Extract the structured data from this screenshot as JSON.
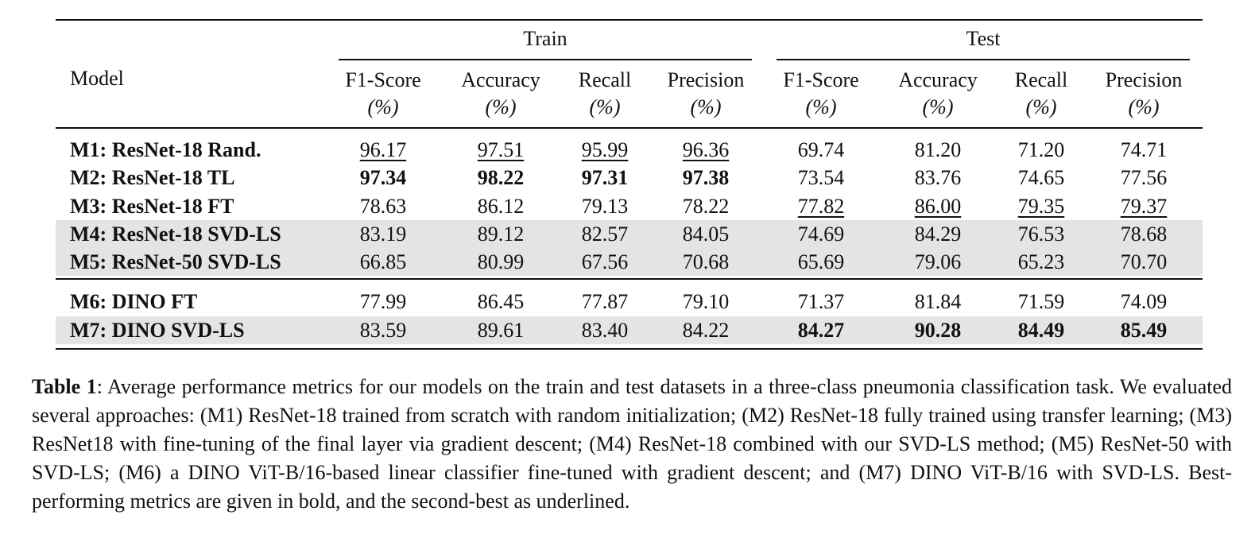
{
  "table": {
    "model_header": "Model",
    "groups": [
      "Train",
      "Test"
    ],
    "metric_headers": [
      {
        "name": "F1-Score",
        "unit": "(%)"
      },
      {
        "name": "Accuracy",
        "unit": "(%)"
      },
      {
        "name": "Recall",
        "unit": "(%)"
      },
      {
        "name": "Precision",
        "unit": "(%)"
      },
      {
        "name": "F1-Score",
        "unit": "(%)"
      },
      {
        "name": "Accuracy",
        "unit": "(%)"
      },
      {
        "name": "Recall",
        "unit": "(%)"
      },
      {
        "name": "Precision",
        "unit": "(%)"
      }
    ],
    "rows": [
      {
        "model": "M1: ResNet-18 Rand.",
        "shaded": false,
        "values": [
          "96.17",
          "97.51",
          "95.99",
          "96.36",
          "69.74",
          "81.20",
          "71.20",
          "74.71"
        ],
        "styles": [
          "u",
          "u",
          "u",
          "u",
          "",
          "",
          "",
          ""
        ]
      },
      {
        "model": "M2: ResNet-18 TL",
        "shaded": false,
        "values": [
          "97.34",
          "98.22",
          "97.31",
          "97.38",
          "73.54",
          "83.76",
          "74.65",
          "77.56"
        ],
        "styles": [
          "b",
          "b",
          "b",
          "b",
          "",
          "",
          "",
          ""
        ]
      },
      {
        "model": "M3: ResNet-18 FT",
        "shaded": false,
        "values": [
          "78.63",
          "86.12",
          "79.13",
          "78.22",
          "77.82",
          "86.00",
          "79.35",
          "79.37"
        ],
        "styles": [
          "",
          "",
          "",
          "",
          "u",
          "u",
          "u",
          "u"
        ]
      },
      {
        "model": "M4: ResNet-18 SVD-LS",
        "shaded": true,
        "values": [
          "83.19",
          "89.12",
          "82.57",
          "84.05",
          "74.69",
          "84.29",
          "76.53",
          "78.68"
        ],
        "styles": [
          "",
          "",
          "",
          "",
          "",
          "",
          "",
          ""
        ]
      },
      {
        "model": "M5: ResNet-50 SVD-LS",
        "shaded": true,
        "values": [
          "66.85",
          "80.99",
          "67.56",
          "70.68",
          "65.69",
          "79.06",
          "65.23",
          "70.70"
        ],
        "styles": [
          "",
          "",
          "",
          "",
          "",
          "",
          "",
          ""
        ]
      },
      {
        "model": "M6: DINO FT",
        "shaded": false,
        "values": [
          "77.99",
          "86.45",
          "77.87",
          "79.10",
          "71.37",
          "81.84",
          "71.59",
          "74.09"
        ],
        "styles": [
          "",
          "",
          "",
          "",
          "",
          "",
          "",
          ""
        ]
      },
      {
        "model": "M7: DINO SVD-LS",
        "shaded": true,
        "values": [
          "83.59",
          "89.61",
          "83.40",
          "84.22",
          "84.27",
          "90.28",
          "84.49",
          "85.49"
        ],
        "styles": [
          "",
          "",
          "",
          "",
          "b",
          "b",
          "b",
          "b"
        ]
      }
    ]
  },
  "caption": {
    "label": "Table 1",
    "text": ": Average performance metrics for our models on the train and test datasets in a three-class pneumonia classification task. We evaluated several approaches: (M1) ResNet-18 trained from scratch with random initialization; (M2) ResNet-18 fully trained using transfer learning; (M3) ResNet18 with fine-tuning of the final layer via gradient descent; (M4) ResNet-18 combined with our SVD-LS method; (M5) ResNet-50 with SVD-LS; (M6) a DINO ViT-B/16-based linear classifier fine-tuned with gradient descent; and (M7) DINO ViT-B/16 with SVD-LS. Best-performing metrics are given in bold, and the second-best as underlined."
  }
}
